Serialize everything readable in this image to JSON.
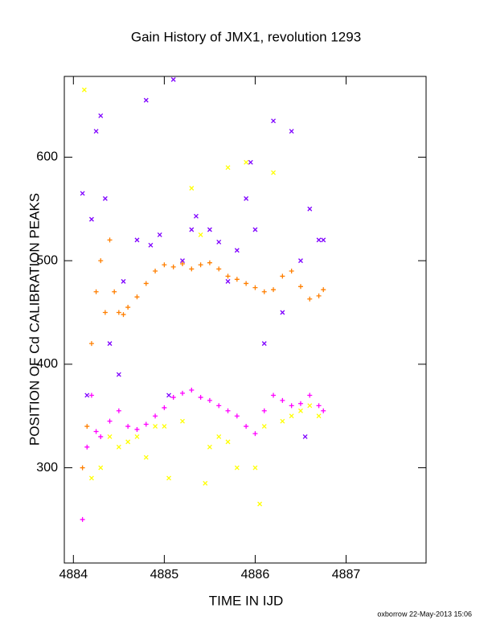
{
  "chart_data": {
    "type": "scatter",
    "title": "Gain History of JMX1, revolution 1293",
    "x_label": "TIME IN IJD",
    "y_label": "POSITION OF Cd CALIBRATION PEAKS",
    "footer": "oxborrow 22-May-2013 15:06",
    "xlim": [
      4883.9,
      4887.88
    ],
    "ylim": [
      208,
      678
    ],
    "xticks": [
      4884,
      4885,
      4886,
      4887
    ],
    "yticks": [
      300,
      400,
      500,
      600
    ],
    "series": [
      {
        "color": "#ffff00",
        "marker": "x",
        "x": [
          4884.12,
          4884.2,
          4884.3,
          4884.4,
          4884.5,
          4884.6,
          4884.7,
          4884.8,
          4884.9,
          4885.0,
          4885.05,
          4885.2,
          4885.3,
          4885.4,
          4885.45,
          4885.5,
          4885.6,
          4885.7,
          4885.8,
          4885.9,
          4886.0,
          4886.05,
          4886.1,
          4886.2,
          4886.3,
          4886.4,
          4886.5,
          4886.6,
          4886.7,
          4885.7
        ],
        "values": [
          665,
          290,
          300,
          330,
          320,
          325,
          330,
          310,
          340,
          340,
          290,
          345,
          570,
          525,
          285,
          320,
          330,
          325,
          300,
          595,
          300,
          265,
          340,
          585,
          345,
          350,
          355,
          360,
          350,
          590
        ]
      },
      {
        "color": "#7f00ff",
        "marker": "x",
        "x": [
          4884.1,
          4884.15,
          4884.2,
          4884.25,
          4884.3,
          4884.35,
          4884.4,
          4884.5,
          4884.55,
          4884.7,
          4884.8,
          4884.85,
          4884.95,
          4885.1,
          4885.2,
          4885.3,
          4885.35,
          4885.5,
          4885.6,
          4885.7,
          4885.8,
          4885.9,
          4885.95,
          4886.0,
          4886.1,
          4886.2,
          4886.3,
          4886.4,
          4886.5,
          4886.6,
          4886.7,
          4886.75,
          4886.55,
          4885.05
        ],
        "values": [
          565,
          370,
          540,
          625,
          640,
          560,
          420,
          390,
          480,
          520,
          655,
          515,
          525,
          675,
          500,
          530,
          543,
          530,
          518,
          480,
          510,
          560,
          595,
          530,
          420,
          635,
          450,
          625,
          500,
          550,
          520,
          520,
          330,
          370
        ]
      },
      {
        "color": "#ff7f00",
        "marker": "+",
        "x": [
          4884.1,
          4884.15,
          4884.2,
          4884.25,
          4884.3,
          4884.35,
          4884.4,
          4884.45,
          4884.5,
          4884.55,
          4884.6,
          4884.7,
          4884.8,
          4884.9,
          4885.0,
          4885.1,
          4885.2,
          4885.3,
          4885.4,
          4885.5,
          4885.6,
          4885.7,
          4885.8,
          4885.9,
          4886.0,
          4886.1,
          4886.2,
          4886.3,
          4886.4,
          4886.5,
          4886.6,
          4886.7,
          4886.75
        ],
        "values": [
          300,
          340,
          420,
          470,
          500,
          450,
          520,
          470,
          450,
          448,
          455,
          465,
          478,
          490,
          496,
          494,
          497,
          492,
          496,
          498,
          492,
          485,
          482,
          478,
          474,
          470,
          472,
          485,
          490,
          475,
          463,
          466,
          472
        ]
      },
      {
        "color": "#ff00ff",
        "marker": "+",
        "x": [
          4884.1,
          4884.15,
          4884.2,
          4884.25,
          4884.3,
          4884.4,
          4884.5,
          4884.6,
          4884.7,
          4884.8,
          4884.9,
          4885.0,
          4885.1,
          4885.2,
          4885.3,
          4885.4,
          4885.5,
          4885.6,
          4885.7,
          4885.8,
          4885.9,
          4886.0,
          4886.1,
          4886.2,
          4886.3,
          4886.4,
          4886.5,
          4886.6,
          4886.7,
          4886.75
        ],
        "values": [
          250,
          320,
          370,
          335,
          330,
          345,
          355,
          340,
          337,
          342,
          350,
          358,
          368,
          372,
          375,
          368,
          365,
          360,
          355,
          350,
          340,
          333,
          355,
          370,
          365,
          360,
          362,
          370,
          360,
          355
        ]
      }
    ]
  }
}
